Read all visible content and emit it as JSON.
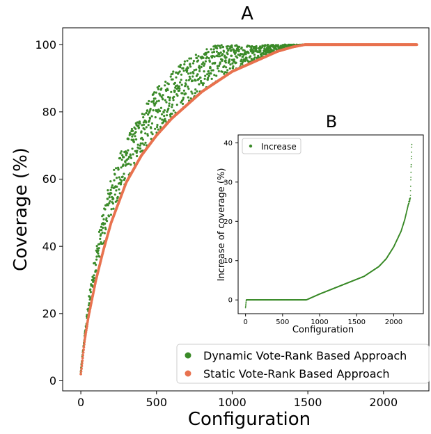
{
  "chart_data": [
    {
      "panel_label": "A",
      "type": "scatter",
      "xlabel": "Configuration",
      "ylabel": "Coverage (%)",
      "xlim": [
        -120,
        2300
      ],
      "ylim": [
        -3,
        105
      ],
      "xticks": [
        0,
        500,
        1000,
        1500,
        2000
      ],
      "yticks": [
        0,
        20,
        40,
        60,
        80,
        100
      ],
      "grid": false,
      "legend_position": "bottom-right",
      "series": [
        {
          "name": "Dynamic Vote-Rank Based Approach",
          "color": "#3a8a28",
          "curve_points": [
            [
              0,
              3
            ],
            [
              50,
              20
            ],
            [
              100,
              33
            ],
            [
              150,
              43
            ],
            [
              200,
              52
            ],
            [
              300,
              64
            ],
            [
              400,
              73
            ],
            [
              500,
              79
            ],
            [
              600,
              84
            ],
            [
              700,
              88
            ],
            [
              800,
              92
            ],
            [
              900,
              95
            ],
            [
              1000,
              97
            ],
            [
              1100,
              99
            ],
            [
              1200,
              100
            ],
            [
              1300,
              100
            ],
            [
              1500,
              100
            ],
            [
              2000,
              100
            ],
            [
              2220,
              100
            ]
          ],
          "upper_envelope": [
            [
              0,
              3
            ],
            [
              50,
              24
            ],
            [
              100,
              40
            ],
            [
              150,
              51
            ],
            [
              200,
              61
            ],
            [
              300,
              72
            ],
            [
              400,
              80
            ],
            [
              500,
              87
            ],
            [
              600,
              92
            ],
            [
              700,
              96
            ],
            [
              800,
              98
            ],
            [
              900,
              100
            ],
            [
              1000,
              100
            ],
            [
              1100,
              100
            ],
            [
              1200,
              100
            ]
          ]
        },
        {
          "name": "Static Vote-Rank Based Approach",
          "color": "#e8724f",
          "curve_points": [
            [
              0,
              2
            ],
            [
              25,
              12
            ],
            [
              50,
              19
            ],
            [
              100,
              30
            ],
            [
              150,
              39
            ],
            [
              200,
              47
            ],
            [
              300,
              59
            ],
            [
              400,
              67
            ],
            [
              500,
              73
            ],
            [
              600,
              78
            ],
            [
              700,
              82
            ],
            [
              800,
              86
            ],
            [
              900,
              89
            ],
            [
              1000,
              92
            ],
            [
              1100,
              94
            ],
            [
              1200,
              96
            ],
            [
              1300,
              98
            ],
            [
              1400,
              99.3
            ],
            [
              1480,
              100
            ],
            [
              1600,
              100
            ],
            [
              2000,
              100
            ],
            [
              2220,
              100
            ]
          ]
        }
      ]
    },
    {
      "panel_label": "B",
      "type": "scatter",
      "xlabel": "Configuration",
      "ylabel": "Increase of coverage (%)",
      "xlim": [
        -100,
        2400
      ],
      "ylim": [
        -3.5,
        42
      ],
      "xticks": [
        0,
        500,
        1000,
        1500,
        2000
      ],
      "yticks": [
        0,
        10,
        20,
        30,
        40
      ],
      "grid": false,
      "legend_position": "top-left",
      "series": [
        {
          "name": "Increase",
          "color": "#3a8a28",
          "curve_points": [
            [
              0,
              -2
            ],
            [
              10,
              0
            ],
            [
              300,
              0
            ],
            [
              600,
              0
            ],
            [
              820,
              0
            ],
            [
              1000,
              1.5
            ],
            [
              1200,
              3.0
            ],
            [
              1400,
              4.5
            ],
            [
              1600,
              6.0
            ],
            [
              1800,
              8.5
            ],
            [
              1900,
              10.5
            ],
            [
              2000,
              13.5
            ],
            [
              2100,
              17.5
            ],
            [
              2150,
              20.5
            ],
            [
              2200,
              24.5
            ],
            [
              2225,
              26.0
            ],
            [
              2230,
              30.0
            ],
            [
              2240,
              37.0
            ],
            [
              2245,
              40.5
            ]
          ]
        }
      ]
    }
  ]
}
